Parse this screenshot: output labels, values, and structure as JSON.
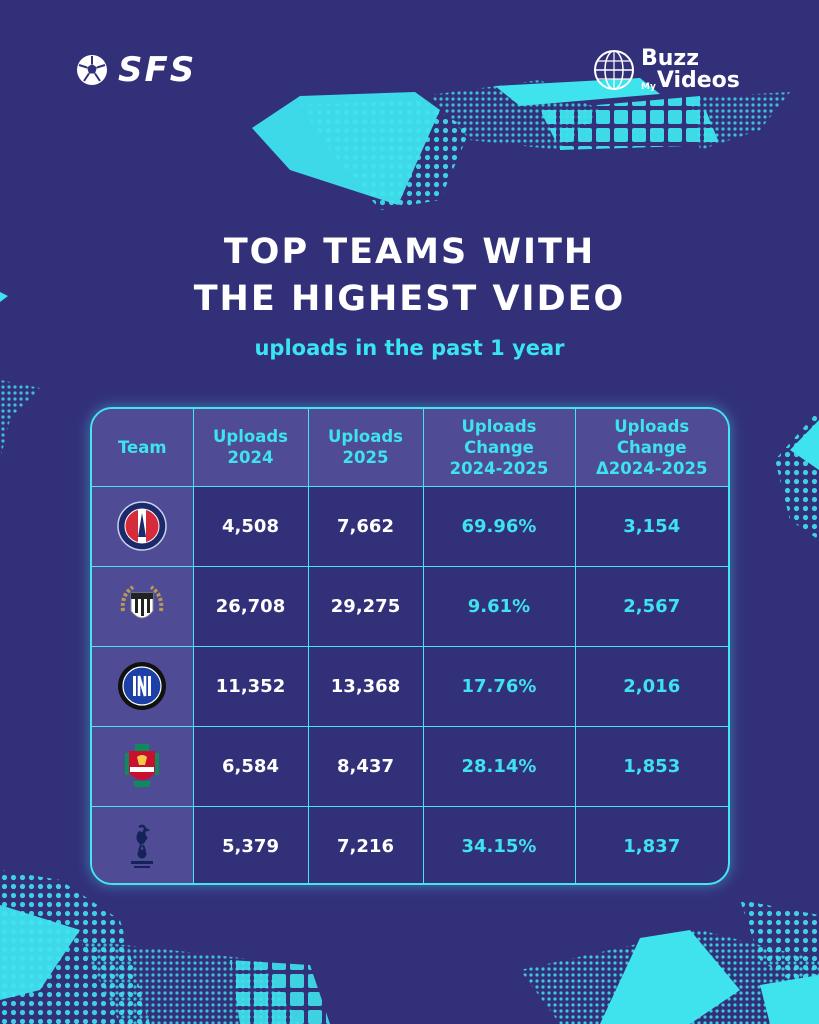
{
  "brand": {
    "left_logo": "SFS",
    "right_logo_line1": "Buzz",
    "right_logo_small": "My",
    "right_logo_line2": "Videos"
  },
  "colors": {
    "background": "#33307a",
    "accent": "#3fe3ee",
    "header_bg": "#4f4b94",
    "text": "#ffffff"
  },
  "title_line1": "TOP TEAMS WITH",
  "title_line2": "THE HIGHEST VIDEO",
  "subtitle": "uploads in the past 1 year",
  "table": {
    "headers": {
      "team": "Team",
      "u24_l1": "Uploads",
      "u24_l2": "2024",
      "u25_l1": "Uploads",
      "u25_l2": "2025",
      "chg_l1": "Uploads",
      "chg_l2": "Change",
      "chg_l3": "2024-2025",
      "dlt_l1": "Uploads",
      "dlt_l2": "Change",
      "dlt_l3": "Δ2024-2025"
    },
    "rows": [
      {
        "crest": "psg-crest-icon",
        "u2024": "4,508",
        "u2025": "7,662",
        "change": "69.96%",
        "delta": "3,154"
      },
      {
        "crest": "udinese-crest-icon",
        "u2024": "26,708",
        "u2025": "29,275",
        "change": "9.61%",
        "delta": "2,567"
      },
      {
        "crest": "inter-crest-icon",
        "u2024": "11,352",
        "u2025": "13,368",
        "change": "17.76%",
        "delta": "2,016"
      },
      {
        "crest": "liverpool-crest-icon",
        "u2024": "6,584",
        "u2025": "8,437",
        "change": "28.14%",
        "delta": "1,853"
      },
      {
        "crest": "tottenham-crest-icon",
        "u2024": "5,379",
        "u2025": "7,216",
        "change": "34.15%",
        "delta": "1,837"
      }
    ]
  }
}
